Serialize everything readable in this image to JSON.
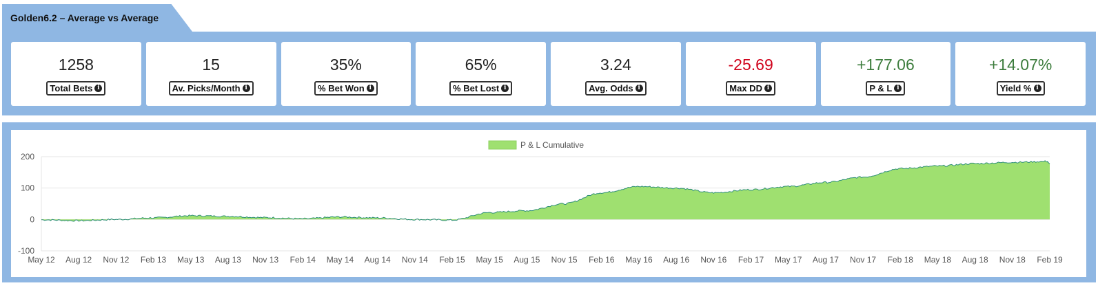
{
  "header": {
    "title": "Golden6.2 – Average vs Average"
  },
  "stats": [
    {
      "value": "1258",
      "label": "Total Bets",
      "tone": "default"
    },
    {
      "value": "15",
      "label": "Av. Picks/Month",
      "tone": "default"
    },
    {
      "value": "35%",
      "label": "% Bet Won",
      "tone": "default"
    },
    {
      "value": "65%",
      "label": "% Bet Lost",
      "tone": "default"
    },
    {
      "value": "3.24",
      "label": "Avg. Odds",
      "tone": "default"
    },
    {
      "value": "-25.69",
      "label": "Max DD",
      "tone": "negative"
    },
    {
      "value": "+177.06",
      "label": "P & L",
      "tone": "positive"
    },
    {
      "value": "+14.07%",
      "label": "Yield %",
      "tone": "positive"
    }
  ],
  "icons": {
    "info": "info-circle-icon"
  },
  "chart_data": {
    "type": "area",
    "legend": {
      "entry": "P & L Cumulative",
      "placement": "top-center"
    },
    "x_tick_labels": [
      "May 12",
      "Aug 12",
      "Nov 12",
      "Feb 13",
      "May 13",
      "Aug 13",
      "Nov 13",
      "Feb 14",
      "May 14",
      "Aug 14",
      "Nov 14",
      "Feb 15",
      "May 15",
      "Aug 15",
      "Nov 15",
      "Feb 16",
      "May 16",
      "Aug 16",
      "Nov 16",
      "Feb 17",
      "May 17",
      "Aug 17",
      "Nov 17",
      "Feb 18",
      "May 18",
      "Aug 18",
      "Nov 18",
      "Feb 19"
    ],
    "y_ticks": [
      200,
      100,
      0,
      -100
    ],
    "ylim": [
      -100,
      200
    ],
    "grid": "horizontal",
    "colors": {
      "fill": "#9fe070",
      "line": "#2f8f78"
    },
    "series": [
      {
        "name": "P & L Cumulative",
        "x": [
          "May 12",
          "Aug 12",
          "Nov 12",
          "Feb 13",
          "May 13",
          "Aug 13",
          "Nov 13",
          "Feb 14",
          "May 14",
          "Aug 14",
          "Nov 14",
          "Feb 15",
          "May 15",
          "Aug 15",
          "Nov 15",
          "Feb 16",
          "May 16",
          "Aug 16",
          "Nov 16",
          "Feb 17",
          "May 17",
          "Aug 17",
          "Nov 17",
          "Feb 18",
          "May 18",
          "Aug 18",
          "Nov 18",
          "Feb 19"
        ],
        "values": [
          -1,
          -4,
          0,
          5,
          12,
          10,
          6,
          2,
          8,
          5,
          0,
          -2,
          22,
          28,
          50,
          85,
          105,
          100,
          85,
          95,
          105,
          118,
          135,
          162,
          170,
          178,
          182,
          185
        ]
      }
    ],
    "end_value": 177
  }
}
